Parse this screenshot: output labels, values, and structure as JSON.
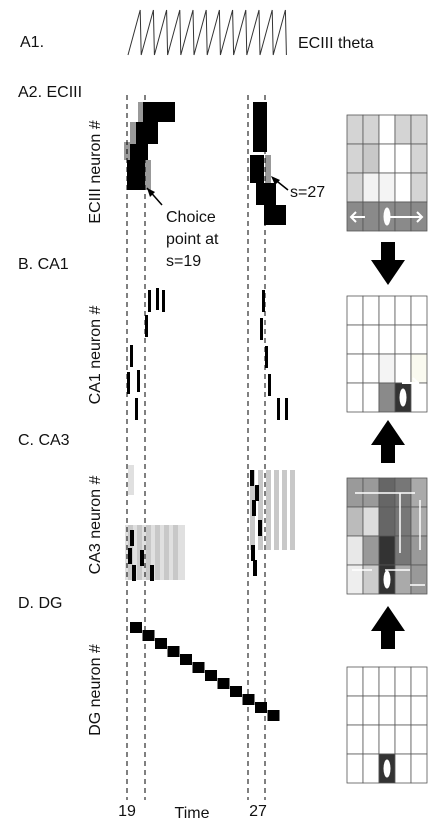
{
  "panels": {
    "a1": {
      "label": "A1.",
      "trace_label": "ECIII theta"
    },
    "a2": {
      "label": "A2. ECIII",
      "axis_label": "ECIII neuron #",
      "annotation_left": [
        "Choice",
        "point at",
        "s=19"
      ],
      "annotation_right": "s=27"
    },
    "b": {
      "label": "B. CA1",
      "axis_label": "CA1 neuron #"
    },
    "c": {
      "label": "C. CA3",
      "axis_label": "CA3 neuron #"
    },
    "d": {
      "label": "D. DG",
      "axis_label": "DG  neuron #"
    }
  },
  "x_axis": {
    "tick_left": "19",
    "label": "Time",
    "tick_right": "27"
  }
}
